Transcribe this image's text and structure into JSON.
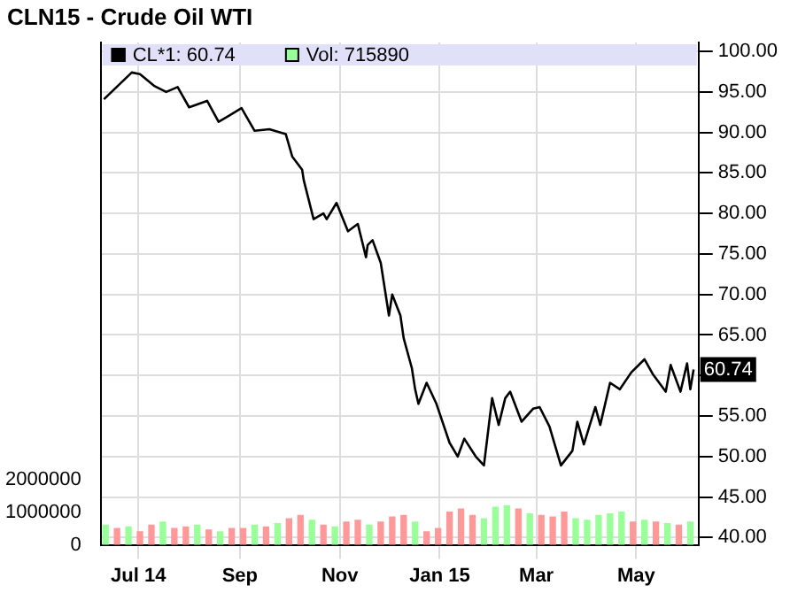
{
  "chart_data": {
    "type": "line",
    "title": "CLN15 - Crude Oil WTI",
    "xlim": [
      "2014-06-08",
      "2015-06-08"
    ],
    "xticks": [
      {
        "value": "2014-07-01",
        "label": "Jul 14"
      },
      {
        "value": "2014-09-01",
        "label": "Sep"
      },
      {
        "value": "2014-11-01",
        "label": "Nov"
      },
      {
        "value": "2015-01-01",
        "label": "Jan 15"
      },
      {
        "value": "2015-03-01",
        "label": "Mar"
      },
      {
        "value": "2015-05-01",
        "label": "May"
      }
    ],
    "ylim": [
      0,
      15400000
    ],
    "yticks": [
      0,
      1000000,
      2000000
    ],
    "y2lim": [
      39.1,
      101.1
    ],
    "y2ticks": [
      {
        "value": 40,
        "label": "40.00"
      },
      {
        "value": 45,
        "label": "45.00"
      },
      {
        "value": 50,
        "label": "50.00"
      },
      {
        "value": 55,
        "label": "55.00"
      },
      {
        "value": 60,
        "label": null
      },
      {
        "value": 65,
        "label": "65.00"
      },
      {
        "value": 70,
        "label": "70.00"
      },
      {
        "value": 75,
        "label": "75.00"
      },
      {
        "value": 80,
        "label": "80.00"
      },
      {
        "value": 85,
        "label": "85.00"
      },
      {
        "value": 90,
        "label": "90.00"
      },
      {
        "value": 95,
        "label": "95.00"
      },
      {
        "value": 100,
        "label": "100.00"
      }
    ],
    "grid": true,
    "legend": "top left",
    "marker": "none",
    "annotations": [
      "60.74"
    ],
    "series": [
      {
        "name": "Vol: 715890",
        "type": "bar",
        "color": "#99ff99",
        "x": [
          "2014-06-11",
          "2014-06-18",
          "2014-06-25",
          "2014-07-02",
          "2014-07-09",
          "2014-07-16",
          "2014-07-23",
          "2014-07-30",
          "2014-08-06",
          "2014-08-13",
          "2014-08-20",
          "2014-08-27",
          "2014-09-03",
          "2014-09-10",
          "2014-09-17",
          "2014-09-24",
          "2014-10-01",
          "2014-10-08",
          "2014-10-15",
          "2014-10-22",
          "2014-10-29",
          "2014-11-05",
          "2014-11-12",
          "2014-11-19",
          "2014-11-26",
          "2014-12-03",
          "2014-12-10",
          "2014-12-17",
          "2014-12-24",
          "2014-12-31",
          "2015-01-07",
          "2015-01-14",
          "2015-01-21",
          "2015-01-28",
          "2015-02-04",
          "2015-02-11",
          "2015-02-18",
          "2015-02-25",
          "2015-03-04",
          "2015-03-11",
          "2015-03-18",
          "2015-03-25",
          "2015-04-01",
          "2015-04-08",
          "2015-04-15",
          "2015-04-22",
          "2015-04-29",
          "2015-05-06",
          "2015-05-13",
          "2015-05-20",
          "2015-05-27",
          "2015-06-03"
        ],
        "values": [
          600000,
          500000,
          550000,
          400000,
          600000,
          700000,
          500000,
          550000,
          600000,
          450000,
          400000,
          500000,
          500000,
          600000,
          550000,
          650000,
          800000,
          900000,
          750000,
          600000,
          550000,
          700000,
          750000,
          600000,
          700000,
          850000,
          900000,
          700000,
          400000,
          500000,
          1000000,
          1100000,
          900000,
          800000,
          1150000,
          1200000,
          1100000,
          950000,
          900000,
          850000,
          1000000,
          800000,
          750000,
          900000,
          950000,
          1000000,
          700000,
          750000,
          700000,
          650000,
          600000,
          700000
        ],
        "colors": [
          "#99ff99",
          "#ff9999",
          "#99ff99",
          "#ff9999",
          "#ff9999",
          "#99ff99",
          "#ff9999",
          "#ff9999",
          "#99ff99",
          "#ff9999",
          "#99ff99",
          "#ff9999",
          "#ff9999",
          "#99ff99",
          "#ff9999",
          "#99ff99",
          "#ff9999",
          "#ff9999",
          "#99ff99",
          "#ff9999",
          "#99ff99",
          "#ff9999",
          "#ff9999",
          "#99ff99",
          "#ff9999",
          "#ff9999",
          "#ff9999",
          "#99ff99",
          "#ff9999",
          "#ff9999",
          "#ff9999",
          "#ff9999",
          "#ff9999",
          "#99ff99",
          "#99ff99",
          "#99ff99",
          "#ff9999",
          "#99ff99",
          "#ff9999",
          "#ff9999",
          "#ff9999",
          "#99ff99",
          "#99ff99",
          "#99ff99",
          "#99ff99",
          "#99ff99",
          "#ff9999",
          "#99ff99",
          "#ff9999",
          "#99ff99",
          "#ff9999",
          "#99ff99"
        ]
      },
      {
        "name": "CL*1: 60.74",
        "color": "#000000",
        "axis": "y2",
        "x": [
          "2014-06-10",
          "2014-06-27",
          "2014-07-02",
          "2014-07-11",
          "2014-07-18",
          "2014-07-25",
          "2014-08-01",
          "2014-08-12",
          "2014-08-19",
          "2014-09-02",
          "2014-09-10",
          "2014-09-19",
          "2014-09-29",
          "2014-10-03",
          "2014-10-09",
          "2014-10-10",
          "2014-10-16",
          "2014-10-22",
          "2014-10-24",
          "2014-10-30",
          "2014-11-06",
          "2014-11-12",
          "2014-11-17",
          "2014-11-18",
          "2014-11-21",
          "2014-11-26",
          "2014-12-01",
          "2014-12-03",
          "2014-12-08",
          "2014-12-10",
          "2014-12-15",
          "2014-12-17",
          "2014-12-19",
          "2014-12-24",
          "2014-12-30",
          "2015-01-07",
          "2015-01-12",
          "2015-01-16",
          "2015-01-23",
          "2015-01-28",
          "2015-02-02",
          "2015-02-06",
          "2015-02-10",
          "2015-02-13",
          "2015-02-20",
          "2015-02-27",
          "2015-03-03",
          "2015-03-09",
          "2015-03-16",
          "2015-03-23",
          "2015-03-26",
          "2015-03-30",
          "2015-04-06",
          "2015-04-09",
          "2015-04-15",
          "2015-04-21",
          "2015-04-28",
          "2015-05-06",
          "2015-05-11",
          "2015-05-19",
          "2015-05-22",
          "2015-05-28",
          "2015-06-01",
          "2015-06-03",
          "2015-06-05"
        ],
        "values": [
          94.1,
          97.4,
          97.2,
          95.7,
          95.0,
          95.6,
          93.1,
          93.9,
          91.3,
          93.0,
          90.2,
          90.4,
          89.8,
          87.0,
          85.4,
          84.1,
          79.3,
          80.0,
          79.3,
          81.3,
          77.8,
          78.7,
          74.6,
          76.1,
          76.7,
          73.9,
          67.4,
          70.0,
          67.4,
          64.6,
          60.9,
          58.3,
          56.5,
          59.1,
          56.5,
          51.7,
          50.0,
          52.2,
          50.0,
          48.9,
          57.2,
          53.9,
          57.2,
          58.0,
          54.3,
          55.9,
          56.1,
          53.7,
          48.9,
          50.7,
          54.3,
          51.5,
          56.1,
          53.9,
          59.1,
          58.3,
          60.4,
          62.0,
          60.2,
          58.0,
          61.3,
          58.0,
          61.5,
          58.3,
          60.74
        ]
      }
    ]
  }
}
